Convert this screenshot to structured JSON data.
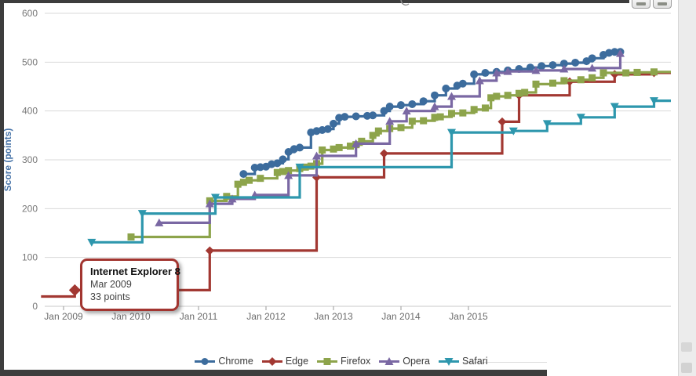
{
  "tooltip": {
    "title": "Internet Explorer 8",
    "date": "Mar 2009",
    "value": "33 points"
  },
  "window": {
    "top_right_buttons": [
      "chart-export-button",
      "chart-print-button"
    ],
    "right_scrollbar": true
  },
  "chart_data": {
    "type": "line",
    "subtype": "step-after",
    "title": "",
    "xlabel": "",
    "ylabel": "Score (points)",
    "ylim": [
      0,
      600
    ],
    "grid": "horizontal",
    "legend_position": "bottom",
    "y_ticks": [
      0,
      100,
      200,
      300,
      400,
      500,
      600
    ],
    "x_ticks": [
      {
        "label": "Jan 2009",
        "year": 2009
      },
      {
        "label": "Jan 2010",
        "year": 2010
      },
      {
        "label": "Jan 2011",
        "year": 2011
      },
      {
        "label": "Jan 2012",
        "year": 2012
      },
      {
        "label": "Jan 2013",
        "year": 2013
      },
      {
        "label": "Jan 2014",
        "year": 2014
      },
      {
        "label": "Jan 2015",
        "year": 2015
      }
    ],
    "highlighted_point": {
      "series": "Edge",
      "date": "2009-03",
      "value": 33,
      "label": "Internet Explorer 8"
    },
    "series": [
      {
        "name": "Chrome",
        "color": "#3c6c9d",
        "marker": "circle",
        "extend_right": false,
        "points": [
          [
            "2011-09",
            271
          ],
          [
            "2011-11",
            284
          ],
          [
            "2011-12",
            285
          ],
          [
            "2012-01",
            286
          ],
          [
            "2012-02",
            291
          ],
          [
            "2012-03",
            293
          ],
          [
            "2012-04",
            301
          ],
          [
            "2012-05",
            316
          ],
          [
            "2012-06",
            322
          ],
          [
            "2012-07",
            325
          ],
          [
            "2012-09",
            356
          ],
          [
            "2012-10",
            359
          ],
          [
            "2012-11",
            361
          ],
          [
            "2012-12",
            363
          ],
          [
            "2013-01",
            374
          ],
          [
            "2013-02",
            386
          ],
          [
            "2013-03",
            388
          ],
          [
            "2013-05",
            389
          ],
          [
            "2013-07",
            390
          ],
          [
            "2013-08",
            391
          ],
          [
            "2013-10",
            400
          ],
          [
            "2013-11",
            409
          ],
          [
            "2014-01",
            412
          ],
          [
            "2014-03",
            414
          ],
          [
            "2014-05",
            420
          ],
          [
            "2014-07",
            432
          ],
          [
            "2014-09",
            446
          ],
          [
            "2014-11",
            452
          ],
          [
            "2014-12",
            456
          ],
          [
            "2015-02",
            475
          ],
          [
            "2015-04",
            478
          ],
          [
            "2015-06",
            480
          ],
          [
            "2015-08",
            483
          ],
          [
            "2015-10",
            486
          ],
          [
            "2015-12",
            489
          ],
          [
            "2016-02",
            492
          ],
          [
            "2016-04",
            494
          ],
          [
            "2016-06",
            497
          ],
          [
            "2016-08",
            499
          ],
          [
            "2016-10",
            502
          ],
          [
            "2016-11",
            508
          ],
          [
            "2017-01",
            515
          ],
          [
            "2017-02",
            519
          ],
          [
            "2017-03",
            521
          ],
          [
            "2017-04",
            521
          ]
        ]
      },
      {
        "name": "Edge",
        "color": "#a23832",
        "marker": "diamond",
        "extend_right": true,
        "points": [
          [
            "2008-09",
            20,
            "nomarker"
          ],
          [
            "2009-03",
            33,
            "big"
          ],
          [
            "2011-03",
            114
          ],
          [
            "2012-10",
            264
          ],
          [
            "2013-10",
            313
          ],
          [
            "2015-07",
            378
          ],
          [
            "2015-10",
            432
          ],
          [
            "2016-07",
            460
          ],
          [
            "2017-03",
            475
          ],
          [
            "2017-10",
            478
          ]
        ]
      },
      {
        "name": "Firefox",
        "color": "#8da44b",
        "marker": "square",
        "extend_right": true,
        "points": [
          [
            "2010-01",
            142
          ],
          [
            "2011-03",
            216
          ],
          [
            "2011-06",
            225
          ],
          [
            "2011-08",
            250
          ],
          [
            "2011-09",
            254
          ],
          [
            "2011-10",
            258
          ],
          [
            "2011-12",
            262
          ],
          [
            "2012-03",
            274
          ],
          [
            "2012-04",
            276
          ],
          [
            "2012-05",
            278
          ],
          [
            "2012-07",
            282
          ],
          [
            "2012-08",
            285
          ],
          [
            "2012-09",
            287
          ],
          [
            "2012-10",
            292
          ],
          [
            "2012-11",
            320
          ],
          [
            "2013-01",
            322
          ],
          [
            "2013-02",
            325
          ],
          [
            "2013-04",
            328
          ],
          [
            "2013-05",
            331
          ],
          [
            "2013-06",
            338
          ],
          [
            "2013-08",
            350
          ],
          [
            "2013-09",
            359
          ],
          [
            "2013-11",
            364
          ],
          [
            "2014-01",
            366
          ],
          [
            "2014-03",
            379
          ],
          [
            "2014-05",
            380
          ],
          [
            "2014-07",
            387
          ],
          [
            "2014-08",
            388
          ],
          [
            "2014-10",
            395
          ],
          [
            "2014-12",
            396
          ],
          [
            "2015-02",
            403
          ],
          [
            "2015-04",
            406
          ],
          [
            "2015-05",
            427
          ],
          [
            "2015-06",
            430
          ],
          [
            "2015-08",
            432
          ],
          [
            "2015-10",
            436
          ],
          [
            "2015-11",
            438
          ],
          [
            "2016-01",
            455
          ],
          [
            "2016-04",
            457
          ],
          [
            "2016-06",
            462
          ],
          [
            "2016-09",
            464
          ],
          [
            "2016-11",
            468
          ],
          [
            "2017-01",
            478
          ],
          [
            "2017-05",
            478
          ],
          [
            "2017-07",
            479
          ],
          [
            "2017-10",
            480
          ]
        ]
      },
      {
        "name": "Opera",
        "color": "#7a68a3",
        "marker": "triangle-up",
        "extend_right": false,
        "points": [
          [
            "2010-06",
            171
          ],
          [
            "2011-03",
            210
          ],
          [
            "2011-07",
            220
          ],
          [
            "2011-11",
            228
          ],
          [
            "2012-05",
            268
          ],
          [
            "2012-10",
            308
          ],
          [
            "2013-05",
            333
          ],
          [
            "2013-11",
            379
          ],
          [
            "2014-02",
            400
          ],
          [
            "2014-07",
            409
          ],
          [
            "2014-10",
            430
          ],
          [
            "2015-03",
            462
          ],
          [
            "2015-06",
            478
          ],
          [
            "2015-08",
            481
          ],
          [
            "2016-01",
            483
          ],
          [
            "2016-06",
            486
          ],
          [
            "2016-11",
            488
          ],
          [
            "2017-04",
            518
          ]
        ]
      },
      {
        "name": "Safari",
        "color": "#2e97ad",
        "marker": "triangle-down",
        "extend_right": true,
        "points": [
          [
            "2009-06",
            131
          ],
          [
            "2010-03",
            190
          ],
          [
            "2011-04",
            223
          ],
          [
            "2012-07",
            285
          ],
          [
            "2014-10",
            356
          ],
          [
            "2015-09",
            359
          ],
          [
            "2016-03",
            374
          ],
          [
            "2016-09",
            387
          ],
          [
            "2017-03",
            409
          ],
          [
            "2017-10",
            421
          ]
        ]
      }
    ]
  }
}
